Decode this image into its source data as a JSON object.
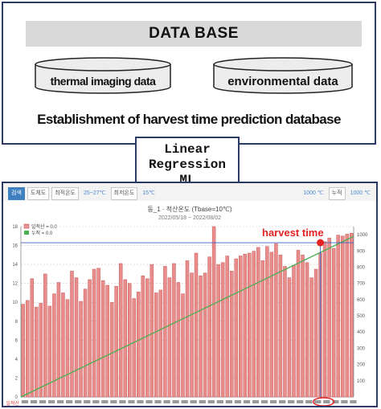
{
  "database": {
    "header": "DATA BASE",
    "items": [
      "thermal imaging data",
      "environmental data"
    ],
    "caption": "Establishment of harvest time prediction database"
  },
  "ml_box": {
    "lines": [
      "Linear",
      "Regression",
      "ML"
    ]
  },
  "toolbar": {
    "buttons": [
      "검색",
      "도체도",
      "최적온도",
      "25~27℃",
      "최저온도",
      "15℃",
      "1000 ℃",
      "누적",
      "1000 ℃"
    ]
  },
  "colors": {
    "bar": "#e88c8c",
    "bar_stroke": "#c95b5b",
    "line": "#4caf50",
    "marker": "#e32222",
    "frame": "#2b3a67"
  },
  "chart_data": {
    "type": "bar",
    "title": "동_1 · 적산온도 (Tbase=10℃)",
    "subtitle": "2022/05/18 ~ 2022/08/02",
    "legend": [
      "일적산 = 0.0",
      "누적 = 0.0"
    ],
    "annotation": "harvest time",
    "ylim": [
      0,
      18
    ],
    "y_ticks": [
      0,
      2,
      4,
      6,
      8,
      10,
      12,
      14,
      16,
      18
    ],
    "y2lim": [
      0,
      1050
    ],
    "y2_ticks": [
      100,
      200,
      300,
      400,
      500,
      600,
      700,
      800,
      900,
      1000
    ],
    "x_first_label": "일적산",
    "series": [
      {
        "name": "일적산",
        "values": [
          9.8,
          10.2,
          12.5,
          9.5,
          9.9,
          13.0,
          9.6,
          10.9,
          12.1,
          11.0,
          10.3,
          13.3,
          12.6,
          10.1,
          11.4,
          12.4,
          13.5,
          13.6,
          12.3,
          11.8,
          10.0,
          11.7,
          14.1,
          12.4,
          12.0,
          10.4,
          11.1,
          12.8,
          12.5,
          14.0,
          11.0,
          11.3,
          13.8,
          12.6,
          14.1,
          12.1,
          10.9,
          14.4,
          13.1,
          15.2,
          12.8,
          13.1,
          14.8,
          18.0,
          14.0,
          14.2,
          14.9,
          13.3,
          14.6,
          14.9,
          15.1,
          15.2,
          15.4,
          15.8,
          14.4,
          15.9,
          15.3,
          16.2,
          15.0,
          13.8,
          12.6,
          13.9,
          15.5,
          15.0,
          14.2,
          12.6,
          13.5,
          15.2,
          16.4,
          16.8,
          15.7,
          17.1,
          17.0,
          17.2,
          17.3
        ]
      },
      {
        "name": "누적",
        "values": [
          0,
          990
        ]
      }
    ]
  }
}
